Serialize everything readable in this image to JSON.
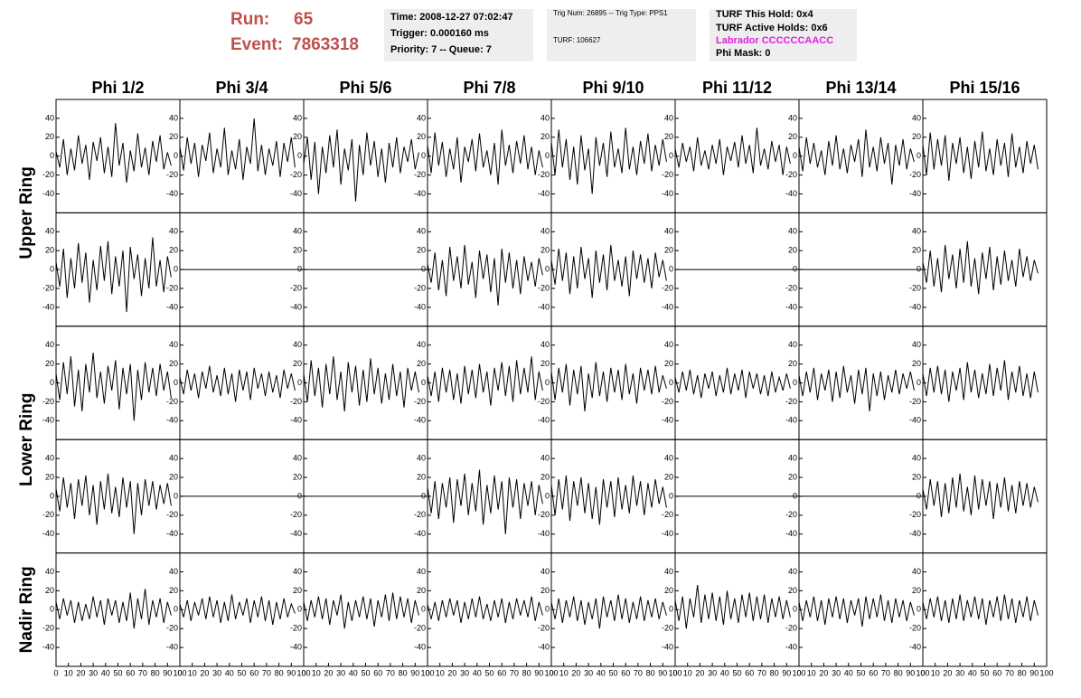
{
  "header": {
    "run_label": "Run:",
    "run": "65",
    "event_label": "Event:",
    "event": "7863318",
    "time": "Time: 2008-12-27 07:02:47",
    "trigger": "Trigger: 0.000160 ms",
    "priority": "Priority: 7 -- Queue: 7",
    "trig_num": "Trig Num: 26895 -- Trig Type: PPS1",
    "turf": "TURF: 106627",
    "turf_hold": "TURF This Hold: 0x4",
    "turf_active": "TURF Active Holds: 0x6",
    "labrador": "Labrador CCCCCCAACC",
    "phi_mask": "Phi Mask: 0"
  },
  "chart_data": {
    "type": "line",
    "color": "#000000",
    "columns": [
      "Phi 1/2",
      "Phi 3/4",
      "Phi 5/6",
      "Phi 7/8",
      "Phi 9/10",
      "Phi 11/12",
      "Phi 13/14",
      "Phi 15/16"
    ],
    "rows": [
      "Upper Ring",
      "Lower Ring",
      "Nadir Ring"
    ],
    "xlim": [
      0,
      100
    ],
    "xticks": [
      0,
      10,
      20,
      30,
      40,
      50,
      60,
      70,
      80,
      90,
      100
    ],
    "ylim": [
      -60,
      60
    ],
    "yticks": [
      -40,
      -20,
      0,
      20,
      40
    ],
    "x": [
      0,
      3,
      6,
      9,
      12,
      15,
      18,
      21,
      24,
      27,
      30,
      33,
      36,
      39,
      42,
      45,
      48,
      51,
      54,
      57,
      60,
      63,
      66,
      69,
      72,
      75,
      78,
      81,
      84,
      87,
      90,
      93
    ],
    "panels": [
      {
        "values": [
          5,
          -12,
          18,
          -20,
          8,
          -15,
          22,
          -8,
          12,
          -25,
          15,
          -5,
          20,
          -18,
          10,
          -22,
          35,
          -10,
          14,
          -28,
          6,
          -16,
          24,
          -12,
          9,
          -20,
          16,
          -6,
          22,
          -14,
          4,
          -10
        ]
      },
      {
        "values": [
          10,
          -15,
          20,
          -8,
          14,
          -22,
          12,
          -5,
          25,
          -18,
          8,
          -12,
          30,
          -20,
          6,
          -14,
          18,
          -25,
          10,
          -8,
          40,
          -16,
          12,
          -20,
          8,
          -10,
          16,
          -22,
          14,
          -6,
          20,
          -12
        ]
      },
      {
        "values": [
          -8,
          20,
          -25,
          15,
          -40,
          10,
          -18,
          22,
          -12,
          28,
          -30,
          8,
          -15,
          18,
          -48,
          12,
          -20,
          25,
          -10,
          16,
          -22,
          8,
          -28,
          14,
          -12,
          20,
          -18,
          10,
          -6,
          18,
          -14,
          4
        ]
      },
      {
        "values": [
          12,
          -18,
          25,
          -10,
          15,
          -22,
          8,
          -14,
          20,
          -28,
          10,
          -6,
          18,
          -16,
          24,
          -12,
          6,
          -20,
          14,
          -30,
          28,
          -10,
          12,
          -18,
          16,
          -8,
          22,
          -14,
          10,
          -20,
          6,
          -12
        ]
      },
      {
        "values": [
          15,
          -20,
          28,
          -12,
          18,
          -25,
          10,
          -30,
          22,
          -15,
          8,
          -40,
          20,
          -10,
          14,
          -22,
          26,
          -12,
          8,
          -18,
          30,
          -14,
          10,
          -20,
          16,
          -8,
          24,
          -16,
          12,
          -10,
          18,
          -6
        ]
      },
      {
        "values": [
          8,
          -12,
          14,
          -6,
          10,
          -16,
          20,
          -10,
          6,
          -14,
          12,
          -8,
          18,
          -20,
          10,
          -5,
          15,
          -12,
          22,
          -8,
          12,
          -18,
          30,
          -10,
          8,
          -14,
          16,
          -6,
          12,
          -20,
          10,
          -8
        ]
      },
      {
        "values": [
          10,
          -16,
          20,
          -8,
          14,
          -12,
          6,
          -20,
          16,
          -10,
          22,
          -14,
          8,
          -18,
          12,
          -6,
          18,
          -22,
          28,
          -12,
          10,
          -16,
          20,
          -8,
          14,
          -30,
          12,
          -10,
          18,
          -14,
          8,
          -6
        ]
      },
      {
        "values": [
          12,
          -20,
          25,
          -14,
          18,
          -10,
          22,
          -26,
          14,
          -8,
          20,
          -18,
          10,
          -24,
          16,
          -12,
          26,
          -16,
          8,
          -20,
          18,
          -10,
          14,
          -22,
          24,
          -12,
          10,
          -18,
          16,
          -8,
          12,
          -14
        ]
      },
      {
        "values": [
          8,
          -18,
          22,
          -30,
          12,
          -20,
          28,
          -14,
          18,
          -35,
          10,
          -22,
          25,
          -12,
          30,
          -26,
          14,
          -18,
          20,
          -45,
          24,
          -10,
          16,
          -28,
          12,
          -20,
          34,
          -18,
          10,
          -24,
          14,
          -8
        ]
      },
      {
        "x": [
          0,
          100
        ],
        "values": [
          0,
          0
        ]
      },
      {
        "x": [
          0,
          100
        ],
        "values": [
          0,
          0
        ]
      },
      {
        "values": [
          6,
          -14,
          18,
          -22,
          10,
          -28,
          24,
          -12,
          14,
          -20,
          26,
          -16,
          8,
          -30,
          20,
          -10,
          16,
          -24,
          12,
          -38,
          22,
          -14,
          18,
          -20,
          10,
          -26,
          14,
          -12,
          8,
          -18,
          12,
          -6
        ]
      },
      {
        "values": [
          10,
          -16,
          22,
          -12,
          18,
          -26,
          14,
          -20,
          24,
          -10,
          12,
          -30,
          20,
          -14,
          16,
          -22,
          26,
          -12,
          10,
          -18,
          14,
          -28,
          20,
          -10,
          16,
          -14,
          12,
          -20,
          18,
          -8,
          10,
          -12
        ]
      },
      {
        "x": [
          0,
          100
        ],
        "values": [
          0,
          0
        ]
      },
      {
        "x": [
          0,
          100
        ],
        "values": [
          0,
          0
        ]
      },
      {
        "values": [
          8,
          -14,
          20,
          -18,
          12,
          -24,
          26,
          -10,
          16,
          -20,
          22,
          -14,
          30,
          -18,
          12,
          -26,
          18,
          -10,
          24,
          -22,
          14,
          -16,
          20,
          -12,
          10,
          -18,
          22,
          -8,
          14,
          -12,
          10,
          -4
        ]
      },
      {
        "values": [
          10,
          -18,
          22,
          -12,
          28,
          -25,
          14,
          -30,
          20,
          -10,
          32,
          -16,
          12,
          -22,
          18,
          -8,
          24,
          -28,
          16,
          -12,
          20,
          -40,
          14,
          -18,
          22,
          -10,
          16,
          -14,
          20,
          -8,
          12,
          -16
        ]
      },
      {
        "values": [
          6,
          -12,
          14,
          -8,
          10,
          -16,
          12,
          -6,
          18,
          -10,
          8,
          -14,
          16,
          -12,
          10,
          -20,
          14,
          -8,
          12,
          -18,
          16,
          -6,
          10,
          -14,
          12,
          -10,
          8,
          -16,
          14,
          -6,
          10,
          -8
        ]
      },
      {
        "values": [
          10,
          -20,
          24,
          -14,
          16,
          -26,
          20,
          -12,
          28,
          -18,
          12,
          -30,
          22,
          -10,
          18,
          -24,
          14,
          -20,
          26,
          -12,
          16,
          -22,
          10,
          -18,
          20,
          -14,
          12,
          -26,
          16,
          -8,
          12,
          -10
        ]
      },
      {
        "values": [
          8,
          -14,
          12,
          -20,
          16,
          -10,
          14,
          -18,
          10,
          -22,
          18,
          -12,
          14,
          -16,
          20,
          -10,
          12,
          -24,
          16,
          -8,
          22,
          -14,
          18,
          -20,
          24,
          -12,
          16,
          -10,
          28,
          -18,
          12,
          -8
        ]
      },
      {
        "values": [
          12,
          -18,
          16,
          -10,
          20,
          -24,
          14,
          -12,
          18,
          -30,
          10,
          -16,
          22,
          -14,
          12,
          -20,
          16,
          -10,
          14,
          -18,
          20,
          -12,
          10,
          -22,
          16,
          -8,
          14,
          -12,
          18,
          -10,
          8,
          -6
        ]
      },
      {
        "values": [
          6,
          -10,
          12,
          -8,
          14,
          -12,
          8,
          -16,
          10,
          -6,
          12,
          -14,
          8,
          -10,
          16,
          -12,
          10,
          -8,
          14,
          -16,
          12,
          -6,
          10,
          -12,
          8,
          -14,
          12,
          -10,
          6,
          -8,
          10,
          -6
        ]
      },
      {
        "values": [
          8,
          -14,
          12,
          -10,
          16,
          -18,
          10,
          -8,
          14,
          -20,
          12,
          -16,
          18,
          -10,
          8,
          -22,
          14,
          -12,
          16,
          -30,
          10,
          -14,
          12,
          -18,
          8,
          -10,
          14,
          -12,
          10,
          -6,
          12,
          -8
        ]
      },
      {
        "values": [
          10,
          -14,
          16,
          -10,
          18,
          -12,
          14,
          -20,
          12,
          -8,
          16,
          -18,
          22,
          -10,
          14,
          -16,
          10,
          -12,
          20,
          -14,
          16,
          -8,
          24,
          -18,
          12,
          -10,
          18,
          -14,
          10,
          -16,
          12,
          -10
        ]
      },
      {
        "values": [
          8,
          -16,
          20,
          -12,
          14,
          -24,
          18,
          -10,
          22,
          -20,
          12,
          -30,
          16,
          -14,
          24,
          -18,
          10,
          -22,
          20,
          -12,
          16,
          -40,
          14,
          -20,
          18,
          -10,
          16,
          -14,
          12,
          -8,
          14,
          -10
        ]
      },
      {
        "x": [
          0,
          100
        ],
        "values": [
          0,
          0
        ]
      },
      {
        "x": [
          0,
          100
        ],
        "values": [
          0,
          0
        ]
      },
      {
        "values": [
          10,
          -18,
          16,
          -24,
          14,
          -12,
          20,
          -28,
          18,
          -10,
          24,
          -20,
          14,
          -16,
          28,
          -30,
          12,
          -18,
          22,
          -14,
          16,
          -40,
          20,
          -12,
          18,
          -24,
          14,
          -10,
          16,
          -20,
          12,
          -8
        ]
      },
      {
        "values": [
          12,
          -20,
          18,
          -14,
          22,
          -26,
          16,
          -10,
          20,
          -18,
          14,
          -24,
          10,
          -30,
          18,
          -12,
          16,
          -22,
          20,
          -14,
          12,
          -18,
          22,
          -10,
          16,
          -20,
          14,
          -12,
          18,
          -8,
          10,
          -12
        ]
      },
      {
        "x": [
          0,
          100
        ],
        "values": [
          0,
          0
        ]
      },
      {
        "x": [
          0,
          100
        ],
        "values": [
          0,
          0
        ]
      },
      {
        "values": [
          8,
          -14,
          18,
          -10,
          16,
          -22,
          14,
          -18,
          20,
          -12,
          24,
          -16,
          10,
          -20,
          22,
          -14,
          18,
          -10,
          16,
          -24,
          14,
          -12,
          20,
          -16,
          12,
          -18,
          16,
          -10,
          14,
          -12,
          10,
          -6
        ]
      },
      {
        "values": [
          8,
          -10,
          12,
          -6,
          10,
          -14,
          8,
          -12,
          6,
          -10,
          14,
          -8,
          10,
          -16,
          12,
          -6,
          10,
          -14,
          8,
          -12,
          18,
          -20,
          12,
          -10,
          22,
          -16,
          10,
          -8,
          12,
          -14,
          8,
          -6
        ]
      },
      {
        "values": [
          6,
          -8,
          10,
          -12,
          8,
          -6,
          12,
          -10,
          14,
          -8,
          10,
          -14,
          8,
          -12,
          16,
          -10,
          8,
          -6,
          12,
          -14,
          10,
          -8,
          14,
          -12,
          10,
          -16,
          8,
          -10,
          12,
          -8,
          6,
          -4
        ]
      },
      {
        "values": [
          8,
          -12,
          10,
          -8,
          14,
          -10,
          12,
          -16,
          10,
          -6,
          16,
          -20,
          8,
          -12,
          10,
          -8,
          14,
          -10,
          12,
          -18,
          10,
          -8,
          16,
          -12,
          18,
          -10,
          14,
          -8,
          12,
          -14,
          10,
          -6
        ]
      },
      {
        "values": [
          6,
          -10,
          8,
          -12,
          10,
          -8,
          12,
          -6,
          10,
          -14,
          8,
          -10,
          12,
          -8,
          14,
          -10,
          6,
          -12,
          10,
          -8,
          12,
          -14,
          8,
          -10,
          12,
          -6,
          10,
          -8,
          14,
          -12,
          8,
          -6
        ]
      },
      {
        "values": [
          8,
          -10,
          12,
          -14,
          10,
          -8,
          14,
          -12,
          10,
          -16,
          8,
          -10,
          12,
          -20,
          14,
          -8,
          10,
          -12,
          16,
          -10,
          12,
          -14,
          8,
          -10,
          14,
          -12,
          10,
          -8,
          12,
          -10,
          8,
          -6
        ]
      },
      {
        "values": [
          10,
          -12,
          14,
          -20,
          12,
          -8,
          26,
          -14,
          16,
          -10,
          18,
          -12,
          14,
          -16,
          20,
          -10,
          12,
          -14,
          16,
          -8,
          18,
          -12,
          14,
          -10,
          16,
          -14,
          12,
          -8,
          14,
          -10,
          10,
          -8
        ]
      },
      {
        "values": [
          8,
          -12,
          10,
          -8,
          14,
          -12,
          10,
          -16,
          12,
          -8,
          14,
          -10,
          12,
          -14,
          10,
          -6,
          12,
          -18,
          14,
          -10,
          12,
          -8,
          16,
          -12,
          10,
          -14,
          12,
          -8,
          10,
          -12,
          8,
          -6
        ]
      },
      {
        "values": [
          8,
          -10,
          12,
          -8,
          14,
          -12,
          10,
          -14,
          12,
          -10,
          16,
          -12,
          10,
          -8,
          14,
          -10,
          12,
          -16,
          10,
          -8,
          14,
          -12,
          16,
          -10,
          12,
          -14,
          10,
          -8,
          14,
          -12,
          10,
          -6
        ]
      }
    ]
  }
}
